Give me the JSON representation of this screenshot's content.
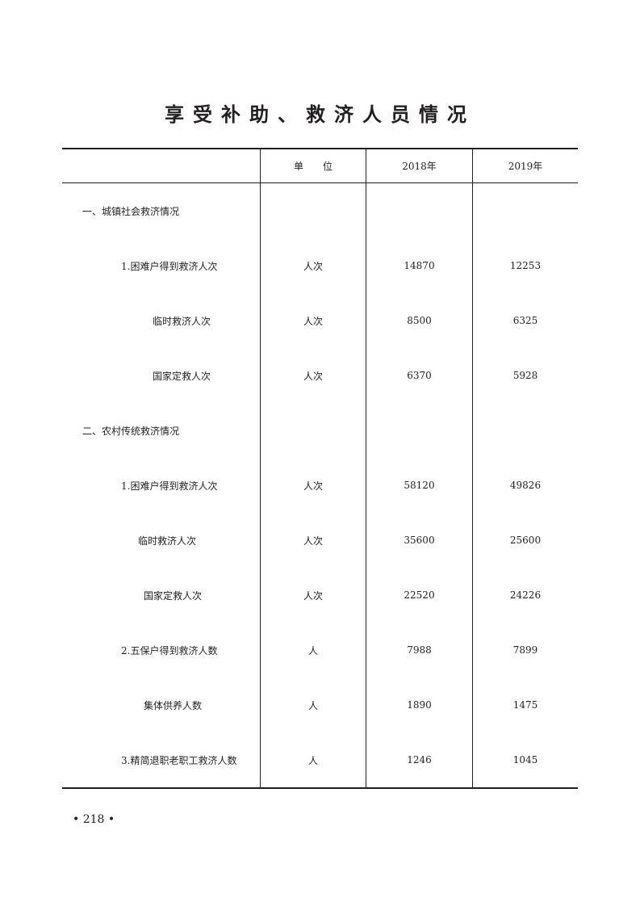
{
  "title": "享受补助、救济人员情况",
  "table": {
    "headers": [
      "",
      "单　　位",
      "2018年",
      "2019年"
    ],
    "rows": [
      {
        "label": "一、城镇社会救济情况",
        "unit": "",
        "y2018": "",
        "y2019": "",
        "level": "lvl0"
      },
      {
        "label": "1.困难户得到救济人次",
        "unit": "人次",
        "y2018": "14870",
        "y2019": "12253",
        "level": "lvl1"
      },
      {
        "label": "临时救济人次",
        "unit": "人次",
        "y2018": "8500",
        "y2019": "6325",
        "level": "lvl2"
      },
      {
        "label": "国家定救人次",
        "unit": "人次",
        "y2018": "6370",
        "y2019": "5928",
        "level": "lvl2"
      },
      {
        "label": "二、农村传统救济情况",
        "unit": "",
        "y2018": "",
        "y2019": "",
        "level": "lvl0"
      },
      {
        "label": "1.困难户得到救济人次",
        "unit": "人次",
        "y2018": "58120",
        "y2019": "49826",
        "level": "lvl1"
      },
      {
        "label": "临时救济人次",
        "unit": "人次",
        "y2018": "35600",
        "y2019": "25600",
        "level": "lvl2b"
      },
      {
        "label": "国家定救人次",
        "unit": "人次",
        "y2018": "22520",
        "y2019": "24226",
        "level": "lvl2c"
      },
      {
        "label": "2.五保户得到救济人数",
        "unit": "人",
        "y2018": "7988",
        "y2019": "7899",
        "level": "lvl1"
      },
      {
        "label": "集体供养人数",
        "unit": "人",
        "y2018": "1890",
        "y2019": "1475",
        "level": "lvl2d"
      },
      {
        "label": "3.精简退职老职工救济人数",
        "unit": "人",
        "y2018": "1246",
        "y2019": "1045",
        "level": "lvl1"
      }
    ]
  },
  "page_number": "• 218 •"
}
